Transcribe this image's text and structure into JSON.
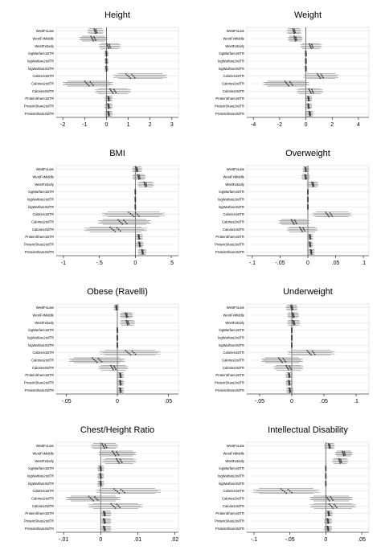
{
  "chart_data": [
    {
      "type": "scatter",
      "title": "Height",
      "categories": [
        "WestFxLate",
        "WestFxMiddle",
        "WestFxEarly",
        "logWarfare1stTR",
        "logWarfare2ndTR",
        "logWarfare3rdTR",
        "Calories1stTR",
        "Calories2ndTR",
        "Calories3rdTR",
        "ProteinShare1stTR",
        "ProteinShare2ndTR",
        "ProteinShare3rdTR"
      ],
      "xticks": [
        "-2",
        "-1",
        "0",
        "1",
        "2",
        "3"
      ],
      "xlim": [
        -2.3,
        3.3
      ],
      "reference_line": 0,
      "center": [
        -0.5,
        -0.6,
        0.1,
        0.0,
        0.0,
        0.0,
        1.1,
        -0.8,
        0.3,
        0.1,
        0.1,
        0.1
      ],
      "lo": [
        -0.9,
        -1.3,
        -0.4,
        -0.1,
        -0.1,
        -0.1,
        0.2,
        -2.1,
        -0.6,
        -0.1,
        -0.1,
        -0.1
      ],
      "hi": [
        -0.1,
        0.1,
        0.7,
        0.1,
        0.1,
        0.1,
        2.9,
        0.4,
        1.2,
        0.3,
        0.3,
        0.3
      ]
    },
    {
      "type": "scatter",
      "title": "Weight",
      "categories": [
        "WestFxLate",
        "WestFxMiddle",
        "WestFxEarly",
        "logWarfare1stTR",
        "logWarfare2ndTR",
        "logWarfare3rdTR",
        "Calories1stTR",
        "Calories2ndTR",
        "Calories3rdTR",
        "ProteinShare1stTR",
        "ProteinShare2ndTR",
        "ProteinShare3rdTR"
      ],
      "xticks": [
        "-4",
        "-2",
        "0",
        "2",
        "4"
      ],
      "xlim": [
        -4.5,
        4.8
      ],
      "reference_line": 0,
      "center": [
        -0.9,
        -0.8,
        0.4,
        0.0,
        0.0,
        0.0,
        1.1,
        -1.3,
        0.4,
        0.2,
        0.2,
        0.3
      ],
      "lo": [
        -1.5,
        -1.4,
        -0.5,
        -0.1,
        -0.1,
        -0.1,
        -0.3,
        -3.4,
        -0.8,
        -0.1,
        -0.1,
        -0.1
      ],
      "hi": [
        -0.3,
        -0.2,
        1.3,
        0.1,
        0.1,
        0.1,
        2.6,
        0.4,
        1.4,
        0.5,
        0.5,
        0.6
      ]
    },
    {
      "type": "scatter",
      "title": "BMI",
      "categories": [
        "WestFxLate",
        "WestFxMiddle",
        "WestFxEarly",
        "logWarfare1stTR",
        "logWarfare2ndTR",
        "logWarfare3rdTR",
        "Calories1stTR",
        "Calories2ndTR",
        "Calories3rdTR",
        "ProteinShare1stTR",
        "ProteinShare2ndTR",
        "ProteinShare3rdTR"
      ],
      "xticks": [
        "-1",
        "-.5",
        "0",
        ".5"
      ],
      "xlim": [
        -1.1,
        0.6
      ],
      "reference_line": 0,
      "center": [
        0.02,
        0.05,
        0.14,
        0.0,
        0.0,
        0.0,
        -0.02,
        -0.18,
        -0.28,
        0.05,
        0.06,
        0.1
      ],
      "lo": [
        -0.05,
        -0.05,
        0.02,
        -0.01,
        -0.01,
        -0.01,
        -0.5,
        -0.55,
        -0.75,
        0.0,
        0.0,
        0.03
      ],
      "hi": [
        0.1,
        0.15,
        0.27,
        0.01,
        0.01,
        0.01,
        0.45,
        0.25,
        0.2,
        0.11,
        0.12,
        0.16
      ]
    },
    {
      "type": "scatter",
      "title": "Overweight",
      "categories": [
        "WestFxLate",
        "WestFxMiddle",
        "WestFxEarly",
        "logWarfare1stTR",
        "logWarfare2ndTR",
        "logWarfare3rdTR",
        "Calories1stTR",
        "Calories2ndTR",
        "Calories3rdTR",
        "ProteinShare1stTR",
        "ProteinShare2ndTR",
        "ProteinShare3rdTR"
      ],
      "xticks": [
        "-.1",
        "-.05",
        "0",
        ".05",
        ".1"
      ],
      "xlim": [
        -0.11,
        0.11
      ],
      "reference_line": 0,
      "center": [
        -0.004,
        -0.004,
        0.009,
        0.0,
        0.0,
        0.0,
        0.038,
        -0.025,
        -0.01,
        0.004,
        0.004,
        0.006
      ],
      "lo": [
        -0.01,
        -0.012,
        -0.003,
        -0.001,
        -0.001,
        -0.001,
        0.005,
        -0.055,
        -0.04,
        -0.002,
        -0.002,
        -0.001
      ],
      "hi": [
        0.003,
        0.004,
        0.02,
        0.001,
        0.001,
        0.001,
        0.082,
        0.005,
        0.02,
        0.01,
        0.01,
        0.013
      ]
    },
    {
      "type": "scatter",
      "title": "Obese (Ravelli)",
      "categories": [
        "WestFxLate",
        "WestFxMiddle",
        "WestFxEarly",
        "logWarfare1stTR",
        "logWarfare2ndTR",
        "logWarfare3rdTR",
        "Calories1stTR",
        "Calories2ndTR",
        "Calories3rdTR",
        "ProteinShare1stTR",
        "ProteinShare2ndTR",
        "ProteinShare3rdTR"
      ],
      "xticks": [
        "-.05",
        "0",
        ".05"
      ],
      "xlim": [
        -0.06,
        0.06
      ],
      "reference_line": 0,
      "center": [
        -0.001,
        0.009,
        0.01,
        0.0,
        0.0,
        0.0,
        0.013,
        -0.02,
        -0.004,
        0.003,
        0.003,
        0.003
      ],
      "lo": [
        -0.004,
        0.002,
        0.002,
        -0.001,
        -0.001,
        -0.001,
        -0.02,
        -0.05,
        -0.02,
        -0.001,
        -0.001,
        -0.001
      ],
      "hi": [
        0.002,
        0.016,
        0.018,
        0.001,
        0.001,
        0.001,
        0.045,
        0.01,
        0.012,
        0.007,
        0.007,
        0.007
      ]
    },
    {
      "type": "scatter",
      "title": "Underweight",
      "categories": [
        "WestFxLate",
        "WestFxMiddle",
        "WestFxEarly",
        "logWarfare1stTR",
        "logWarfare2ndTR",
        "logWarfare3rdTR",
        "Calories1stTR",
        "Calories2ndTR",
        "Calories3rdTR",
        "ProteinShare1stTR",
        "ProteinShare2ndTR",
        "ProteinShare3rdTR"
      ],
      "xticks": [
        "-.05",
        "0",
        ".05",
        ".1"
      ],
      "xlim": [
        -0.07,
        0.12
      ],
      "reference_line": 0,
      "center": [
        0.0,
        0.002,
        0.003,
        0.0,
        0.0,
        0.0,
        0.03,
        -0.015,
        -0.005,
        -0.004,
        -0.004,
        -0.003
      ],
      "lo": [
        -0.01,
        -0.008,
        -0.008,
        -0.001,
        -0.001,
        -0.001,
        -0.01,
        -0.05,
        -0.03,
        -0.01,
        -0.01,
        -0.009
      ],
      "hi": [
        0.01,
        0.012,
        0.014,
        0.001,
        0.001,
        0.001,
        0.07,
        0.02,
        0.02,
        0.002,
        0.002,
        0.003
      ]
    },
    {
      "type": "scatter",
      "title": "Chest/Height Ratio",
      "categories": [
        "WestFxLate",
        "WestFxMiddle",
        "WestFxEarly",
        "logWarfare1stTR",
        "logWarfare2ndTR",
        "logWarfare3rdTR",
        "Calories1stTR",
        "Calories2ndTR",
        "Calories3rdTR",
        "ProteinShare1stTR",
        "ProteinShare2ndTR",
        "ProteinShare3rdTR"
      ],
      "xticks": [
        "-.01",
        "0",
        ".01",
        ".02"
      ],
      "xlim": [
        -0.012,
        0.021
      ],
      "reference_line": 0,
      "center": [
        0.001,
        0.004,
        0.005,
        0.0,
        0.0,
        0.0,
        0.005,
        -0.002,
        0.004,
        0.001,
        0.001,
        0.001
      ],
      "lo": [
        -0.003,
        -0.001,
        0.0,
        -0.001,
        -0.001,
        -0.001,
        -0.002,
        -0.01,
        -0.004,
        0.0,
        0.0,
        0.0
      ],
      "hi": [
        0.005,
        0.01,
        0.01,
        0.001,
        0.001,
        0.001,
        0.017,
        0.006,
        0.012,
        0.003,
        0.003,
        0.003
      ]
    },
    {
      "type": "scatter",
      "title": "Intellectual Disability",
      "categories": [
        "WestFxLate",
        "WestFxMiddle",
        "WestFxEarly",
        "logWarfare1stTR",
        "logWarfare2ndTR",
        "logWarfare3rdTR",
        "Calories1stTR",
        "Calories2ndTR",
        "Calories3rdTR",
        "ProteinShare1stTR",
        "ProteinShare2ndTR",
        "ProteinShare3rdTR"
      ],
      "xticks": [
        "-.1",
        "-.05",
        "0",
        ".05"
      ],
      "xlim": [
        -0.11,
        0.06
      ],
      "reference_line": 0,
      "center": [
        0.005,
        0.025,
        0.02,
        0.0,
        0.0,
        0.0,
        -0.055,
        0.005,
        0.01,
        0.004,
        0.003,
        0.003
      ],
      "lo": [
        -0.003,
        0.012,
        0.008,
        -0.001,
        -0.001,
        -0.001,
        -0.105,
        -0.025,
        -0.025,
        -0.002,
        -0.003,
        -0.003
      ],
      "hi": [
        0.013,
        0.038,
        0.032,
        0.001,
        0.001,
        0.001,
        -0.005,
        0.04,
        0.045,
        0.01,
        0.009,
        0.009
      ]
    }
  ]
}
